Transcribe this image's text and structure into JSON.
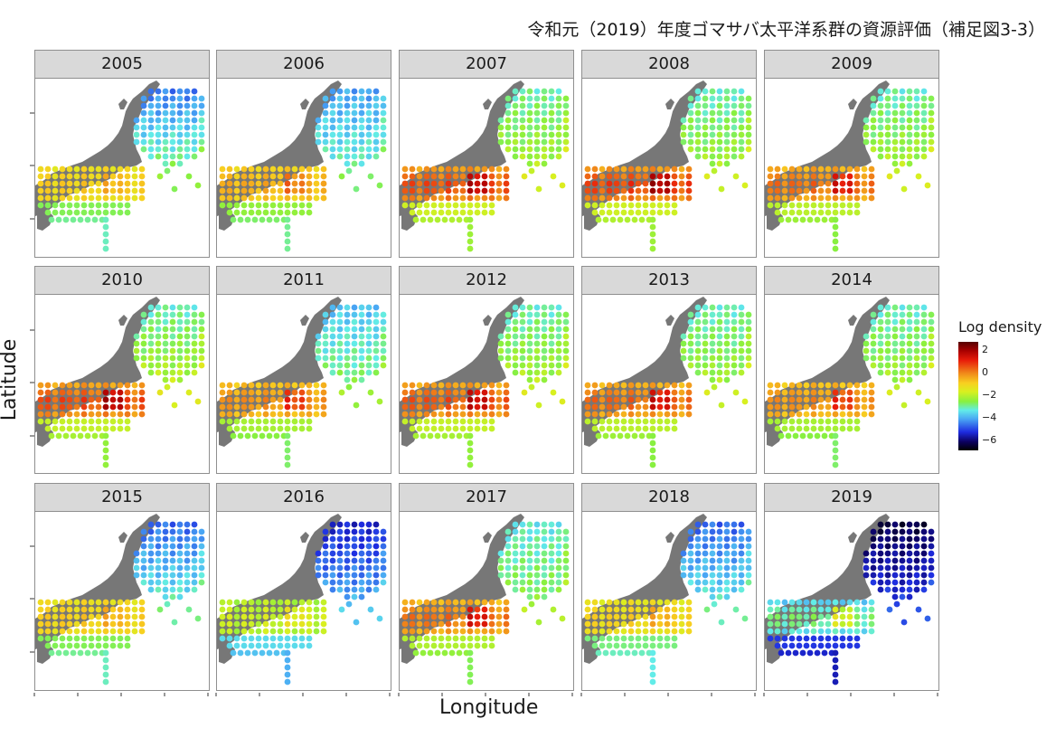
{
  "title": "令和元（2019）年度ゴマサバ太平洋系群の資源評価（補足図3-3）",
  "axes": {
    "xlabel": "Longitude",
    "ylabel": "Latitude"
  },
  "legend": {
    "title": "Log density",
    "ticks": [
      "2",
      "0",
      "−2",
      "−4",
      "−6"
    ],
    "tick_values": [
      2,
      0,
      -2,
      -4,
      -6
    ],
    "range": [
      -7,
      3
    ]
  },
  "colors": {
    "land": "#777777",
    "scale": [
      "#000000",
      "#0c0060",
      "#1e2ce0",
      "#4aa8f4",
      "#62ece8",
      "#88f040",
      "#d8f020",
      "#f8d020",
      "#f08a1a",
      "#e81c0a",
      "#a60000",
      "#550000"
    ]
  },
  "panels": [
    {
      "year": "2005",
      "north": -4.2,
      "east": -2.8,
      "south": -1.0,
      "hot": -0.3
    },
    {
      "year": "2006",
      "north": -3.8,
      "east": -3.0,
      "south": -0.8,
      "hot": 0.3
    },
    {
      "year": "2007",
      "north": -2.7,
      "east": -2.0,
      "south": -0.2,
      "hot": 1.6
    },
    {
      "year": "2008",
      "north": -2.8,
      "east": -2.1,
      "south": -0.2,
      "hot": 1.8
    },
    {
      "year": "2009",
      "north": -2.8,
      "east": -2.0,
      "south": -0.4,
      "hot": 1.2
    },
    {
      "year": "2010",
      "north": -2.8,
      "east": -1.9,
      "south": -0.3,
      "hot": 1.7
    },
    {
      "year": "2011",
      "north": -3.5,
      "east": -2.6,
      "south": -0.6,
      "hot": 0.8
    },
    {
      "year": "2012",
      "north": -2.8,
      "east": -2.0,
      "south": -0.3,
      "hot": 1.5
    },
    {
      "year": "2013",
      "north": -2.8,
      "east": -2.1,
      "south": -0.4,
      "hot": 1.3
    },
    {
      "year": "2014",
      "north": -2.8,
      "east": -2.1,
      "south": -0.6,
      "hot": 0.8
    },
    {
      "year": "2015",
      "north": -4.4,
      "east": -3.2,
      "south": -1.0,
      "hot": -0.3
    },
    {
      "year": "2016",
      "north": -5.2,
      "east": -4.0,
      "south": -1.9,
      "hot": -1.2
    },
    {
      "year": "2017",
      "north": -3.0,
      "east": -2.4,
      "south": -0.5,
      "hot": 1.2
    },
    {
      "year": "2018",
      "north": -4.4,
      "east": -3.3,
      "south": -1.2,
      "hot": -0.3
    },
    {
      "year": "2019",
      "north": -6.4,
      "east": -5.2,
      "south": -3.6,
      "hot": -1.6
    }
  ]
}
